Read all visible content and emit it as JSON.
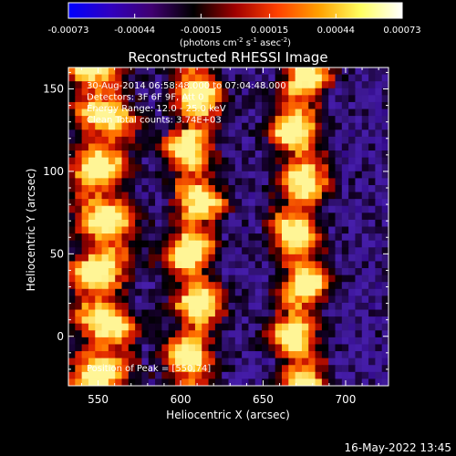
{
  "chart_data": {
    "type": "heatmap",
    "title": "Reconstructed RHESSI Image",
    "xlabel": "Heliocentric X (arcsec)",
    "ylabel": "Heliocentric Y (arcsec)",
    "xlim": [
      532,
      726
    ],
    "ylim": [
      -30,
      163
    ],
    "x_ticks": [
      550,
      600,
      650,
      700
    ],
    "y_ticks": [
      0,
      50,
      100,
      150
    ],
    "colorbar": {
      "min": -0.00073,
      "max": 0.00073,
      "ticks": [
        -0.00073,
        -0.00044,
        -0.00015,
        0.00015,
        0.00044,
        0.00073
      ],
      "tick_labels": [
        "-0.00073",
        "-0.00044",
        "-0.00015",
        "0.00015",
        "0.00044",
        "0.00073"
      ],
      "colors": [
        "#0000ff",
        "#3000c0",
        "#400070",
        "#000000",
        "#a00000",
        "#ff4000",
        "#ffa000",
        "#ffff60",
        "#ffffff"
      ]
    },
    "units_prefix": "(photons cm",
    "units_sup1": "-2",
    "units_mid1": " s",
    "units_sup2": "-1",
    "units_mid2": " asec",
    "units_sup3": "-2",
    "units_suffix": ")",
    "annotations": [
      "30-Aug-2014 06:58:48.000 to 07:04:48.000",
      "Detectors: 3F 6F 9F, Att 0",
      "Energy Range: 12.0 - 25.0 keV",
      "Clean     Total counts: 3.74E+03"
    ],
    "peak_label": "Position of Peak = [550,74]",
    "bright_bands_x": [
      552,
      608,
      672
    ],
    "grid_rows": 46,
    "grid_cols": 48
  },
  "footer": {
    "date": "16-May-2022 13:45"
  }
}
